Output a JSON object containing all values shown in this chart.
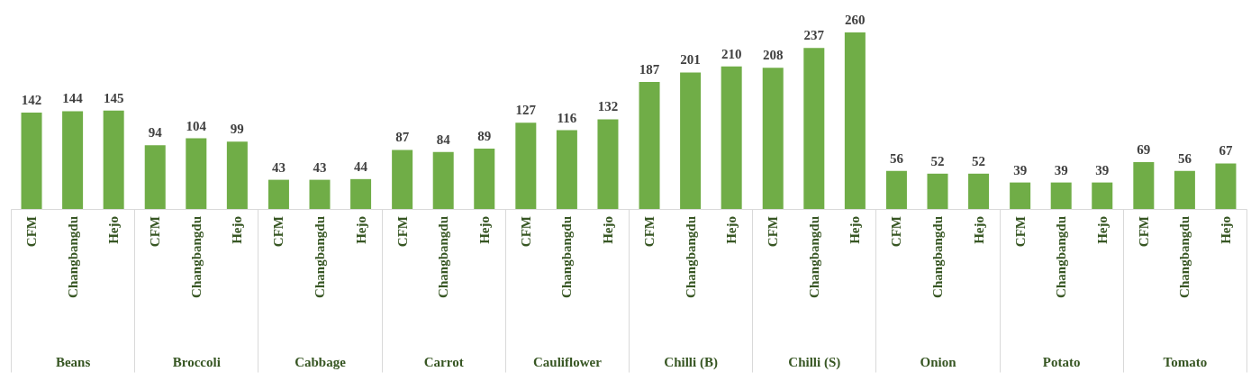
{
  "chart_data": {
    "type": "bar",
    "categories": [
      "Beans",
      "Broccoli",
      "Cabbage",
      "Carrot",
      "Cauliflower",
      "Chilli (B)",
      "Chilli (S)",
      "Onion",
      "Potato",
      "Tomato"
    ],
    "series": [
      {
        "name": "CFM",
        "color": "#70ad47",
        "values": [
          142,
          94,
          43,
          87,
          127,
          187,
          208,
          56,
          39,
          69
        ]
      },
      {
        "name": "Changbangdu",
        "color": "#70ad47",
        "values": [
          144,
          104,
          43,
          84,
          116,
          201,
          237,
          52,
          39,
          56
        ]
      },
      {
        "name": "Hejo",
        "color": "#70ad47",
        "values": [
          145,
          99,
          44,
          89,
          132,
          210,
          260,
          52,
          39,
          67
        ]
      }
    ],
    "data_labels": true,
    "tick_labels": "x"
  }
}
